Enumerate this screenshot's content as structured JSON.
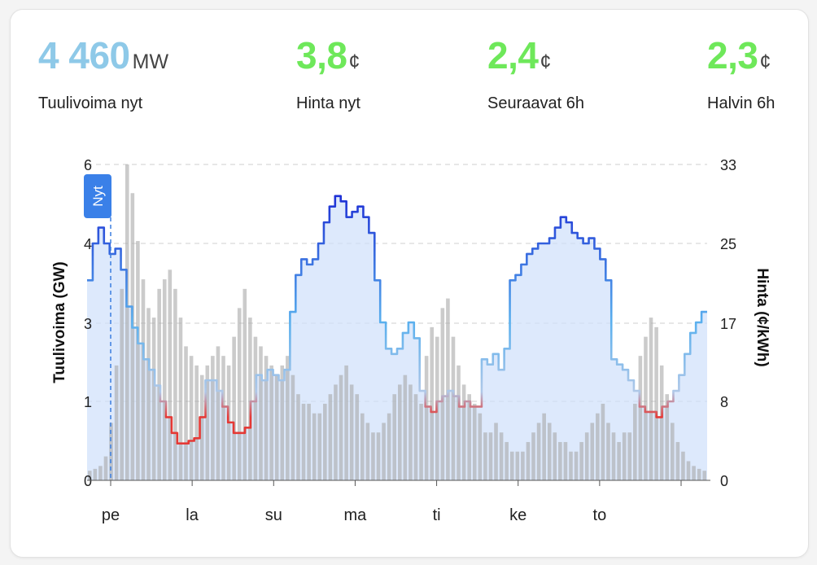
{
  "stats": {
    "wind": {
      "value": "4 460",
      "unit": "MW",
      "label": "Tuulivoima nyt",
      "color": "#8ec9e8"
    },
    "price_now": {
      "value": "3,8",
      "unit": "¢",
      "label": "Hinta nyt",
      "color": "#6ee85a"
    },
    "next6h": {
      "value": "2,4",
      "unit": "¢",
      "label": "Seuraavat 6h",
      "color": "#6ee85a"
    },
    "cheapest6h": {
      "value": "2,3",
      "unit": "¢",
      "label": "Halvin 6h",
      "color": "#6ee85a"
    }
  },
  "chart_data": {
    "type": "line",
    "ylabel_left": "Tuulivoima (GW)",
    "ylabel_right": "Hinta (¢/kWh)",
    "now_label": "Nyt",
    "left_ticks": [
      "0",
      "1",
      "3",
      "4",
      "6"
    ],
    "right_ticks": [
      "0",
      "8",
      "17",
      "25",
      "33"
    ],
    "x_labels": [
      "pe",
      "la",
      "su",
      "ma",
      "ti",
      "ke",
      "to"
    ],
    "ylim_wind_gw": [
      0,
      6
    ],
    "ylim_price": [
      0,
      33
    ],
    "wind_gw": [
      3.8,
      4.5,
      4.8,
      4.5,
      4.3,
      4.4,
      4.0,
      3.3,
      2.9,
      2.6,
      2.3,
      2.1,
      1.8,
      1.5,
      1.2,
      0.9,
      0.7,
      0.7,
      0.75,
      0.8,
      1.2,
      1.9,
      1.9,
      1.7,
      1.4,
      1.1,
      0.9,
      0.9,
      1.0,
      1.5,
      2.0,
      1.9,
      2.1,
      2.0,
      1.9,
      2.1,
      3.2,
      3.9,
      4.2,
      4.1,
      4.2,
      4.5,
      4.9,
      5.2,
      5.4,
      5.3,
      5.0,
      5.1,
      5.2,
      5.0,
      4.7,
      3.8,
      3.0,
      2.5,
      2.4,
      2.5,
      2.8,
      3.0,
      2.7,
      1.7,
      1.4,
      1.3,
      1.5,
      1.6,
      1.7,
      1.6,
      1.4,
      1.5,
      1.4,
      1.4,
      2.3,
      2.2,
      2.4,
      2.1,
      2.5,
      3.8,
      3.9,
      4.1,
      4.3,
      4.4,
      4.5,
      4.5,
      4.6,
      4.8,
      5.0,
      4.9,
      4.7,
      4.6,
      4.5,
      4.6,
      4.4,
      4.2,
      3.8,
      2.3,
      2.2,
      2.1,
      1.9,
      1.7,
      1.4,
      1.3,
      1.3,
      1.2,
      1.4,
      1.5,
      1.7,
      2.0,
      2.4,
      2.8,
      3.0,
      3.2
    ],
    "price": [
      1,
      1.2,
      1.5,
      2.5,
      6,
      12,
      20,
      33,
      30,
      25,
      21,
      18,
      17,
      20,
      21,
      22,
      20,
      17,
      14,
      13,
      12,
      11,
      12,
      13,
      14,
      13,
      12,
      15,
      18,
      20,
      17,
      15,
      14,
      13,
      12,
      11,
      12,
      13,
      11,
      9,
      8,
      8,
      7,
      7,
      8,
      9,
      10,
      11,
      12,
      10,
      9,
      7,
      6,
      5,
      5,
      6,
      7,
      9,
      10,
      11,
      10,
      9,
      8,
      13,
      16,
      15,
      18,
      19,
      15,
      12,
      10,
      9,
      8,
      7,
      5,
      5,
      6,
      5,
      4,
      3,
      3,
      3,
      4,
      5,
      6,
      7,
      6,
      5,
      4,
      4,
      3,
      3,
      4,
      5,
      6,
      7,
      8,
      6,
      5,
      4,
      5,
      5,
      8,
      13,
      15,
      17,
      16,
      12,
      9,
      6,
      4,
      3,
      2,
      1.5,
      1.2,
      1
    ]
  }
}
